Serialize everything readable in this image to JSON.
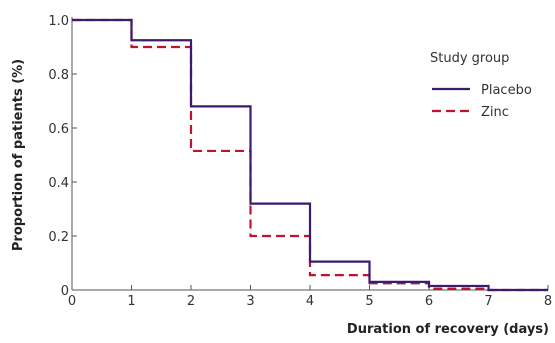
{
  "chart_data": {
    "type": "line",
    "step": true,
    "title": "",
    "xlabel": "Duration of recovery (days)",
    "ylabel": "Proportion of patients (%)",
    "xlim": [
      0,
      8
    ],
    "ylim": [
      0,
      1.0
    ],
    "x_ticks": [
      "0",
      "1",
      "2",
      "3",
      "4",
      "5",
      "6",
      "7",
      "8"
    ],
    "y_ticks": [
      "0",
      "0.2",
      "0.4",
      "0.6",
      "0.8",
      "1.0"
    ],
    "grid": false,
    "legend": {
      "title": "Study group",
      "position": "top-right"
    },
    "series": [
      {
        "name": "Placebo",
        "style": "solid",
        "color": "#3b1b6e",
        "x": [
          0,
          1,
          2,
          3,
          4,
          5,
          6,
          7,
          8
        ],
        "y": [
          1.0,
          0.925,
          0.68,
          0.32,
          0.105,
          0.03,
          0.015,
          0.0,
          0.0
        ]
      },
      {
        "name": "Zinc",
        "style": "dashed",
        "color": "#c0112d",
        "x": [
          0,
          1,
          2,
          3,
          4,
          5,
          6,
          7,
          8
        ],
        "y": [
          1.0,
          0.9,
          0.515,
          0.2,
          0.055,
          0.025,
          0.005,
          0.0,
          0.0
        ]
      }
    ]
  }
}
